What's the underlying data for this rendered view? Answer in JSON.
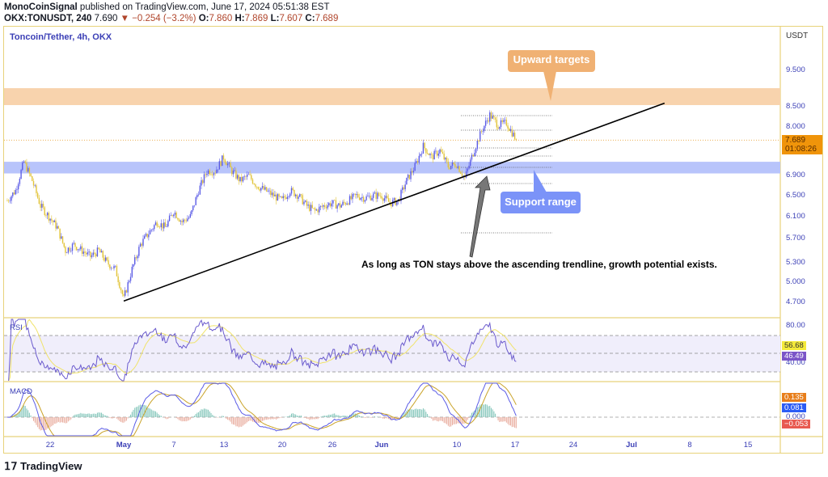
{
  "header": {
    "author": "MonoCoinSignal",
    "published": "published on TradingView.com, June 17, 2024 05:51:38 EST",
    "symbol": "OKX:TONUSDT, 240",
    "last": "7.690",
    "change": "▼ −0.254 (−3.2%)",
    "o_label": "O:",
    "o": "7.860",
    "h_label": "H:",
    "h": "7.869",
    "l_label": "L:",
    "l": "7.607",
    "c_label": "C:",
    "c": "7.689"
  },
  "chart_title": "Toncoin/Tether, 4h, OKX",
  "currency": "USDT",
  "price_ticks": [
    "9.500",
    "8.500",
    "8.000",
    "6.900",
    "6.500",
    "6.100",
    "5.700",
    "5.300",
    "5.000",
    "4.700"
  ],
  "price_tag": {
    "value": "7.689",
    "countdown": "01:08:26"
  },
  "rsi": {
    "label": "RSI",
    "ticks": [
      "80.00",
      "40.00"
    ],
    "value": "56.68",
    "ma": "46.49"
  },
  "macd": {
    "label": "MACD",
    "ticks": [
      "0.000"
    ],
    "signal": "0.135",
    "macd": "0.081",
    "hist": "−0.053"
  },
  "time_ticks": [
    "22",
    "May",
    "7",
    "13",
    "20",
    "26",
    "Jun",
    "10",
    "17",
    "24",
    "Jul",
    "8",
    "15"
  ],
  "annotations": {
    "targets": "Upward targets",
    "support": "Support range",
    "note": "As long as TON stays above the ascending trendline, growth potential exists."
  },
  "brand": "TradingView",
  "colors": {
    "up": "#5b5ce6",
    "down": "#e2c43a",
    "target_zone": "#f8d3ad",
    "support_zone": "#b8c4fb",
    "target_callout": "#f0b173",
    "support_callout": "#7b93f8"
  },
  "chart_data": {
    "type": "candlestick",
    "interval": "4h",
    "indicators": [
      "RSI 14",
      "MACD 12 26 9"
    ],
    "closes_approx": [
      [
        "2024-04-17",
        6.4
      ],
      [
        "2024-04-18",
        6.6
      ],
      [
        "2024-04-19",
        7.2
      ],
      [
        "2024-04-20",
        6.8
      ],
      [
        "2024-04-21",
        6.3
      ],
      [
        "2024-04-22",
        6.1
      ],
      [
        "2024-04-23",
        5.9
      ],
      [
        "2024-04-24",
        5.5
      ],
      [
        "2024-04-25",
        5.6
      ],
      [
        "2024-04-26",
        5.5
      ],
      [
        "2024-04-27",
        5.4
      ],
      [
        "2024-04-28",
        5.5
      ],
      [
        "2024-04-29",
        5.3
      ],
      [
        "2024-04-30",
        5.2
      ],
      [
        "2024-05-01",
        4.75
      ],
      [
        "2024-05-02",
        5.2
      ],
      [
        "2024-05-03",
        5.6
      ],
      [
        "2024-05-04",
        5.8
      ],
      [
        "2024-05-05",
        6.0
      ],
      [
        "2024-05-06",
        5.9
      ],
      [
        "2024-05-07",
        6.2
      ],
      [
        "2024-05-08",
        6.0
      ],
      [
        "2024-05-09",
        6.1
      ],
      [
        "2024-05-10",
        6.6
      ],
      [
        "2024-05-11",
        7.0
      ],
      [
        "2024-05-12",
        7.0
      ],
      [
        "2024-05-13",
        7.3
      ],
      [
        "2024-05-14",
        7.0
      ],
      [
        "2024-05-15",
        6.8
      ],
      [
        "2024-05-16",
        6.9
      ],
      [
        "2024-05-17",
        6.7
      ],
      [
        "2024-05-18",
        6.6
      ],
      [
        "2024-05-19",
        6.5
      ],
      [
        "2024-05-20",
        6.4
      ],
      [
        "2024-05-21",
        6.6
      ],
      [
        "2024-05-22",
        6.5
      ],
      [
        "2024-05-23",
        6.3
      ],
      [
        "2024-05-24",
        6.2
      ],
      [
        "2024-05-25",
        6.3
      ],
      [
        "2024-05-26",
        6.35
      ],
      [
        "2024-05-27",
        6.3
      ],
      [
        "2024-05-28",
        6.4
      ],
      [
        "2024-05-29",
        6.5
      ],
      [
        "2024-05-30",
        6.45
      ],
      [
        "2024-05-31",
        6.5
      ],
      [
        "2024-06-01",
        6.5
      ],
      [
        "2024-06-02",
        6.35
      ],
      [
        "2024-06-03",
        6.4
      ],
      [
        "2024-06-04",
        6.8
      ],
      [
        "2024-06-05",
        7.1
      ],
      [
        "2024-06-06",
        7.55
      ],
      [
        "2024-06-07",
        7.3
      ],
      [
        "2024-06-08",
        7.45
      ],
      [
        "2024-06-09",
        7.1
      ],
      [
        "2024-06-10",
        7.15
      ],
      [
        "2024-06-11",
        6.85
      ],
      [
        "2024-06-12",
        7.4
      ],
      [
        "2024-06-13",
        7.9
      ],
      [
        "2024-06-14",
        8.3
      ],
      [
        "2024-06-15",
        8.05
      ],
      [
        "2024-06-16",
        8.1
      ],
      [
        "2024-06-17",
        7.689
      ]
    ],
    "zones": {
      "target": [
        8.55,
        9.0
      ],
      "support": [
        6.95,
        7.2
      ]
    },
    "trendline": [
      [
        "2024-05-01",
        4.72
      ],
      [
        "2024-07-05",
        8.6
      ]
    ],
    "y_scale": "log",
    "ylim": [
      4.55,
      10.3
    ]
  }
}
